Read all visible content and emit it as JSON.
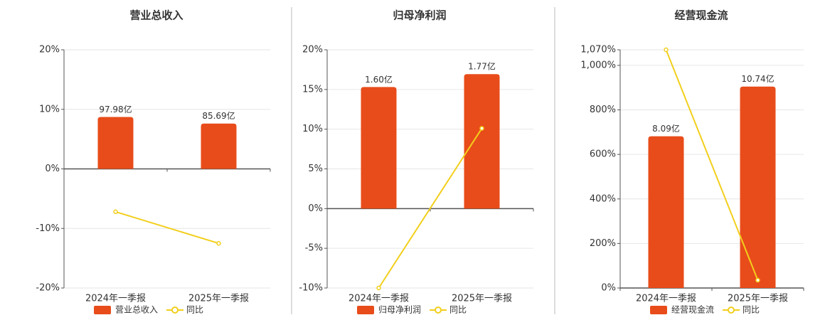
{
  "chart_data": [
    {
      "type": "bar",
      "title": "营业总收入",
      "categories": [
        "2024年一季报",
        "2025年一季报"
      ],
      "ylim": [
        -20,
        20
      ],
      "yticks": [
        {
          "value": -20,
          "label": "-20%"
        },
        {
          "value": -10,
          "label": "-10%"
        },
        {
          "value": 0,
          "label": "0%"
        },
        {
          "value": 10,
          "label": "10%"
        },
        {
          "value": 20,
          "label": "20%"
        }
      ],
      "y2lim": [
        -225,
        225
      ],
      "grid": true,
      "series": [
        {
          "name": "营业总收入",
          "color": "#e84c1a",
          "values": [
            97.98,
            85.69
          ],
          "value_labels": [
            "97.98亿",
            "85.69亿"
          ],
          "axis": "y2"
        },
        {
          "name": "同比",
          "color": "#f2cf1c",
          "type": "line",
          "values": [
            -7.2,
            -12.5
          ]
        }
      ]
    },
    {
      "type": "bar",
      "title": "归母净利润",
      "categories": [
        "2024年一季报",
        "2025年一季报"
      ],
      "ylim": [
        -10,
        20
      ],
      "yticks": [
        {
          "value": -10,
          "label": "-10%"
        },
        {
          "value": -5,
          "label": "-5%"
        },
        {
          "value": 0,
          "label": "0%"
        },
        {
          "value": 5,
          "label": "5%"
        },
        {
          "value": 10,
          "label": "10%"
        },
        {
          "value": 15,
          "label": "15%"
        },
        {
          "value": 20,
          "label": "20%"
        }
      ],
      "y2lim": [
        -1.045,
        2.09
      ],
      "grid": true,
      "series": [
        {
          "name": "归母净利润",
          "color": "#e84c1a",
          "values": [
            1.6,
            1.77
          ],
          "value_labels": [
            "1.60亿",
            "1.77亿"
          ],
          "axis": "y2"
        },
        {
          "name": "同比",
          "color": "#f2cf1c",
          "type": "line",
          "values": [
            -10,
            10.1
          ]
        }
      ]
    },
    {
      "type": "bar",
      "title": "经营现金流",
      "categories": [
        "2024年一季报",
        "2025年一季报"
      ],
      "ylim": [
        0,
        1070
      ],
      "yticks": [
        {
          "value": 0,
          "label": "0%"
        },
        {
          "value": 200,
          "label": "200%"
        },
        {
          "value": 400,
          "label": "400%"
        },
        {
          "value": 600,
          "label": "600%"
        },
        {
          "value": 800,
          "label": "800%"
        },
        {
          "value": 1000,
          "label": "1,000%"
        },
        {
          "value": 1070,
          "label": "1,070%"
        }
      ],
      "y2lim": [
        0,
        12.7
      ],
      "grid": true,
      "series": [
        {
          "name": "经营现金流",
          "color": "#e84c1a",
          "values": [
            8.09,
            10.74
          ],
          "value_labels": [
            "8.09亿",
            "10.74亿"
          ],
          "axis": "y2"
        },
        {
          "name": "同比",
          "color": "#f2cf1c",
          "type": "line",
          "values": [
            1070,
            35
          ]
        }
      ]
    }
  ]
}
